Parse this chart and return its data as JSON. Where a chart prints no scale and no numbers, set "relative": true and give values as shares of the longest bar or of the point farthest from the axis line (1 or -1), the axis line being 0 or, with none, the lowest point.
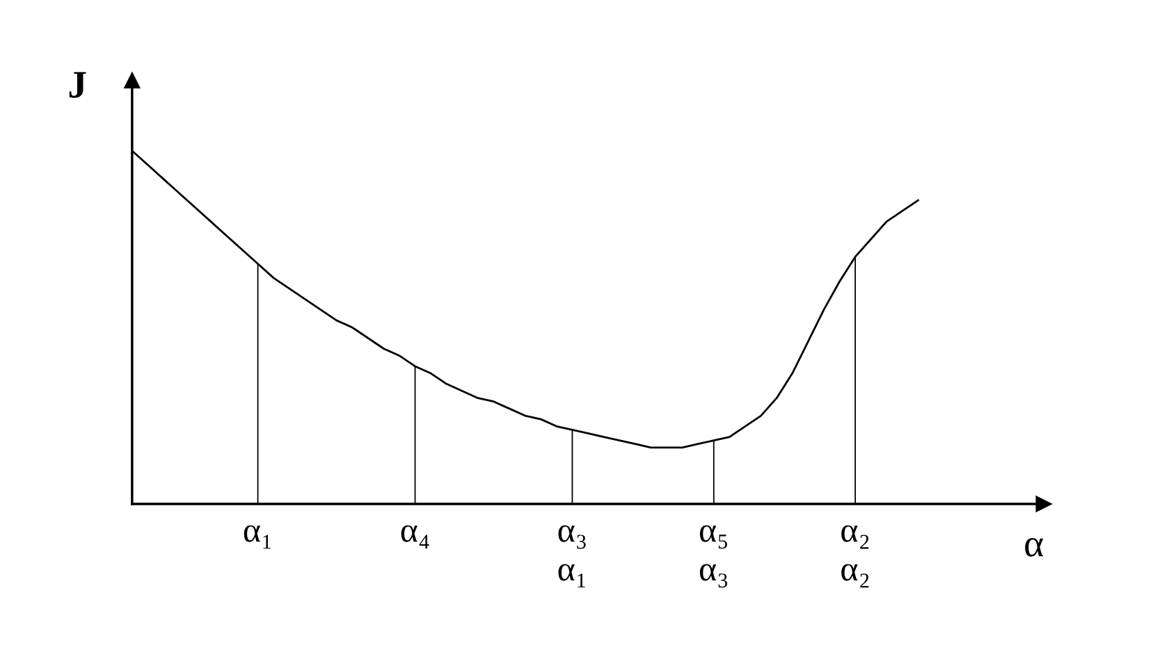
{
  "chart_data": {
    "type": "line",
    "relative": true,
    "xlabel": "α",
    "ylabel": "J",
    "categories": [
      null,
      null,
      null,
      null,
      null,
      null,
      null,
      null,
      "α₁",
      null,
      null,
      null,
      null,
      null,
      null,
      null,
      null,
      null,
      "α₄",
      null,
      null,
      null,
      null,
      null,
      null,
      null,
      null,
      null,
      "α₃\nα₁",
      null,
      null,
      null,
      null,
      null,
      null,
      null,
      null,
      "α₅\nα₃",
      null,
      null,
      null,
      null,
      null,
      null,
      null,
      null,
      "α₂\nα₂",
      null,
      null,
      null,
      null
    ],
    "series": [
      {
        "color": "#000000",
        "values": [
          1.0,
          0.96,
          0.92,
          0.88,
          0.84,
          0.8,
          0.76,
          0.72,
          0.68,
          0.64,
          0.61,
          0.58,
          0.55,
          0.52,
          0.5,
          0.47,
          0.44,
          0.42,
          0.39,
          0.37,
          0.34,
          0.32,
          0.3,
          0.29,
          0.27,
          0.25,
          0.24,
          0.22,
          0.21,
          0.2,
          0.19,
          0.18,
          0.17,
          0.16,
          0.16,
          0.16,
          0.17,
          0.18,
          0.19,
          0.22,
          0.25,
          0.3,
          0.37,
          0.46,
          0.55,
          0.63,
          0.7,
          0.75,
          0.8,
          0.83,
          0.86
        ]
      },
      {
        "type": "bar",
        "color": "#000000",
        "values": [
          null,
          null,
          null,
          null,
          null,
          null,
          null,
          null,
          0.68,
          null,
          null,
          null,
          null,
          null,
          null,
          null,
          null,
          null,
          0.39,
          null,
          null,
          null,
          null,
          null,
          null,
          null,
          null,
          null,
          0.21,
          null,
          null,
          null,
          null,
          null,
          null,
          null,
          null,
          0.18,
          null,
          null,
          null,
          null,
          null,
          null,
          null,
          null,
          0.7,
          null,
          null,
          null,
          null
        ]
      }
    ],
    "grid": false,
    "legend": false
  }
}
